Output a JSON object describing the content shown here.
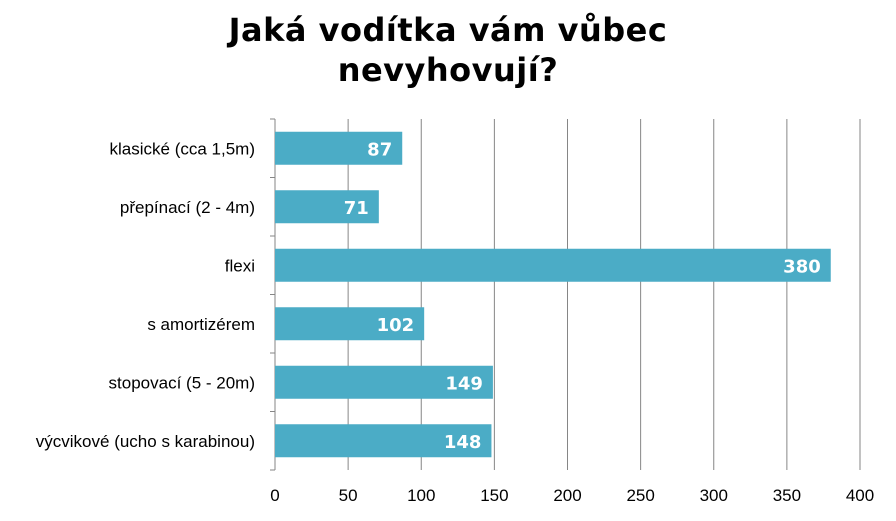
{
  "chart_data": {
    "type": "bar",
    "orientation": "horizontal",
    "title_lines": [
      "Jaká vodítka vám vůbec",
      "nevyhovují?"
    ],
    "categories": [
      "klasické (cca 1,5m)",
      "přepínací (2 - 4m)",
      "flexi",
      "s amortizérem",
      "stopovací (5 - 20m)",
      "výcvikové (ucho s karabinou)"
    ],
    "values": [
      87,
      71,
      380,
      102,
      149,
      148
    ],
    "xlim": [
      0,
      400
    ],
    "ticks": [
      0,
      50,
      100,
      150,
      200,
      250,
      300,
      350,
      400
    ],
    "grid": true,
    "data_labels": true,
    "bar_color": "#4BACC6",
    "label_color": "#FFFFFF"
  }
}
